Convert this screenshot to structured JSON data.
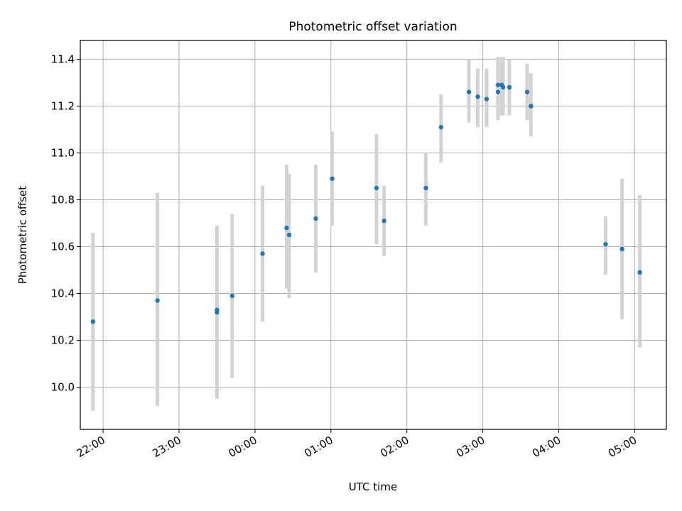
{
  "chart_data": {
    "type": "scatter",
    "title": "Photometric offset variation",
    "xlabel": "UTC time",
    "ylabel": "Photometric offset",
    "x_tick_labels": [
      "22:00",
      "23:00",
      "00:00",
      "01:00",
      "02:00",
      "03:00",
      "04:00",
      "05:00"
    ],
    "y_tick_labels": [
      "10.0",
      "10.2",
      "10.4",
      "10.6",
      "10.8",
      "11.0",
      "11.2",
      "11.4"
    ],
    "xlim": [
      "21:42",
      "05:25"
    ],
    "ylim": [
      9.82,
      11.48
    ],
    "grid": true,
    "series": [
      {
        "marker_color": "#1f77b4",
        "errorbar_color": "#d3d3d3",
        "points": [
          {
            "t": "21:52",
            "y": 10.28,
            "lo": 9.9,
            "hi": 10.66
          },
          {
            "t": "22:43",
            "y": 10.37,
            "lo": 9.92,
            "hi": 10.83
          },
          {
            "t": "23:30",
            "y": 10.32,
            "lo": 9.95,
            "hi": 10.69
          },
          {
            "t": "23:30",
            "y": 10.33,
            "lo": 9.96,
            "hi": 10.68
          },
          {
            "t": "23:42",
            "y": 10.39,
            "lo": 10.04,
            "hi": 10.74
          },
          {
            "t": "00:06",
            "y": 10.57,
            "lo": 10.28,
            "hi": 10.86
          },
          {
            "t": "00:25",
            "y": 10.68,
            "lo": 10.42,
            "hi": 10.95
          },
          {
            "t": "00:27",
            "y": 10.65,
            "lo": 10.38,
            "hi": 10.91
          },
          {
            "t": "00:48",
            "y": 10.72,
            "lo": 10.49,
            "hi": 10.95
          },
          {
            "t": "01:01",
            "y": 10.89,
            "lo": 10.69,
            "hi": 11.09
          },
          {
            "t": "01:36",
            "y": 10.85,
            "lo": 10.61,
            "hi": 11.08
          },
          {
            "t": "01:42",
            "y": 10.71,
            "lo": 10.56,
            "hi": 10.86
          },
          {
            "t": "02:15",
            "y": 10.85,
            "lo": 10.69,
            "hi": 11.0
          },
          {
            "t": "02:27",
            "y": 11.11,
            "lo": 10.96,
            "hi": 11.25
          },
          {
            "t": "02:49",
            "y": 11.26,
            "lo": 11.13,
            "hi": 11.4
          },
          {
            "t": "02:56",
            "y": 11.24,
            "lo": 11.11,
            "hi": 11.36
          },
          {
            "t": "03:03",
            "y": 11.23,
            "lo": 11.11,
            "hi": 11.36
          },
          {
            "t": "03:12",
            "y": 11.26,
            "lo": 11.14,
            "hi": 11.4
          },
          {
            "t": "03:12",
            "y": 11.29,
            "lo": 11.16,
            "hi": 11.41
          },
          {
            "t": "03:15",
            "y": 11.29,
            "lo": 11.16,
            "hi": 11.41
          },
          {
            "t": "03:16",
            "y": 11.28,
            "lo": 11.16,
            "hi": 11.41
          },
          {
            "t": "03:21",
            "y": 11.28,
            "lo": 11.16,
            "hi": 11.4
          },
          {
            "t": "03:35",
            "y": 11.26,
            "lo": 11.14,
            "hi": 11.38
          },
          {
            "t": "03:38",
            "y": 11.2,
            "lo": 11.07,
            "hi": 11.34
          },
          {
            "t": "04:37",
            "y": 10.61,
            "lo": 10.48,
            "hi": 10.73
          },
          {
            "t": "04:50",
            "y": 10.59,
            "lo": 10.29,
            "hi": 10.89
          },
          {
            "t": "05:04",
            "y": 10.49,
            "lo": 10.17,
            "hi": 10.82
          }
        ]
      }
    ]
  }
}
